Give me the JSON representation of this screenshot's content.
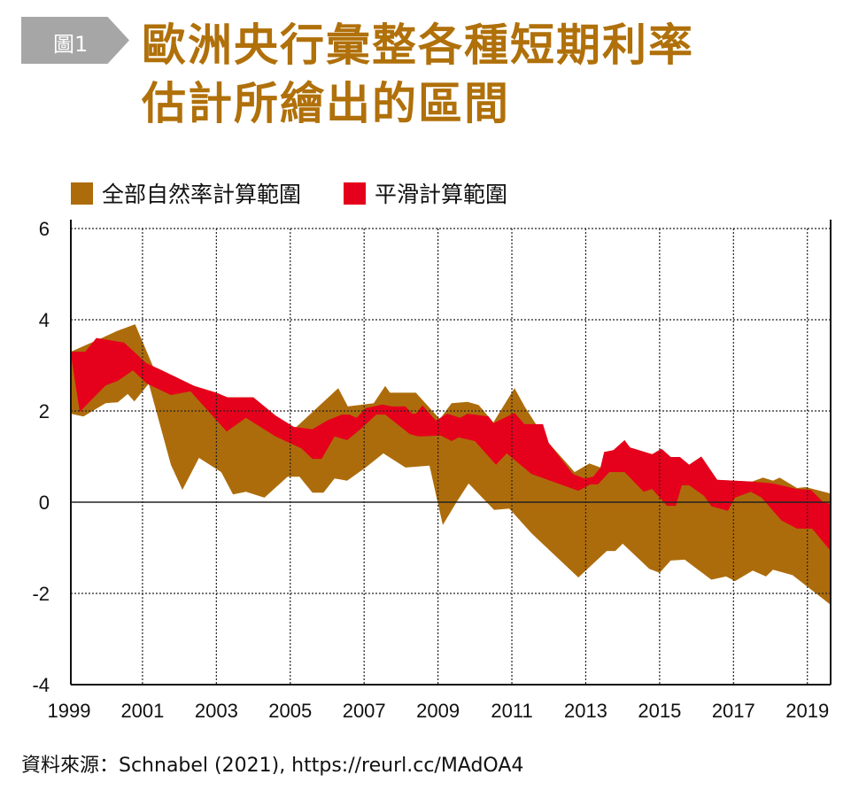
{
  "header": {
    "badge": "圖1",
    "title_line1": "歐洲央行彙整各種短期利率",
    "title_line2": "估計所繪出的區間"
  },
  "source": "資料來源：Schnabel (2021), https://reurl.cc/MAdOA4",
  "colors": {
    "full_range": "#ad6c0b",
    "smoothed_range": "#e5001c",
    "title": "#b0700a",
    "badge": "#a6a6a6"
  },
  "chart_data": {
    "type": "area",
    "title": "歐洲央行彙整各種短期利率估計所繪出的區間",
    "xlabel": "",
    "ylabel": "",
    "xlim": [
      1999.06,
      2019.63
    ],
    "ylim": [
      -4,
      6
    ],
    "x_ticks": [
      "1999",
      "2001",
      "2003",
      "2005",
      "2007",
      "2009",
      "2011",
      "2013",
      "2015",
      "2017",
      "2019"
    ],
    "x_tick_values": [
      1999,
      2001,
      2003,
      2005,
      2007,
      2009,
      2011,
      2013,
      2015,
      2017,
      2019
    ],
    "y_ticks": [
      "6",
      "4",
      "2",
      "0",
      "-2",
      "-4"
    ],
    "y_tick_values": [
      6,
      4,
      2,
      0,
      -2,
      -4
    ],
    "grid": true,
    "legend_position": "top-left",
    "series": [
      {
        "name": "全部自然率計算範圍",
        "color": "#ad6c0b",
        "upper": [
          [
            1999.06,
            3.3
          ],
          [
            1999.9,
            3.6
          ],
          [
            2000.3,
            3.75
          ],
          [
            2000.8,
            3.9
          ],
          [
            2001.3,
            2.95
          ],
          [
            2001.5,
            2.9
          ],
          [
            2002.4,
            2.55
          ],
          [
            2003,
            2.4
          ],
          [
            2003.3,
            2.3
          ],
          [
            2004,
            2.3
          ],
          [
            2004.6,
            1.9
          ],
          [
            2005.1,
            1.6
          ],
          [
            2005.7,
            2.05
          ],
          [
            2006.3,
            2.5
          ],
          [
            2006.56,
            2.1
          ],
          [
            2007.26,
            2.17
          ],
          [
            2007.57,
            2.55
          ],
          [
            2007.7,
            2.4
          ],
          [
            2008.4,
            2.4
          ],
          [
            2009.05,
            1.82
          ],
          [
            2009.37,
            2.17
          ],
          [
            2009.8,
            2.2
          ],
          [
            2010.1,
            2.13
          ],
          [
            2010.5,
            1.75
          ],
          [
            2011.07,
            2.5
          ],
          [
            2011.36,
            2.08
          ],
          [
            2011.93,
            1.36
          ],
          [
            2012.7,
            0.66
          ],
          [
            2013.1,
            0.85
          ],
          [
            2013.4,
            0.76
          ],
          [
            2013.5,
            1.1
          ],
          [
            2013.75,
            1.14
          ],
          [
            2014.05,
            1.36
          ],
          [
            2014.2,
            1.2
          ],
          [
            2014.8,
            1.05
          ],
          [
            2015.05,
            1.17
          ],
          [
            2015.3,
            0.99
          ],
          [
            2015.55,
            0.99
          ],
          [
            2015.8,
            0.82
          ],
          [
            2016.13,
            1.0
          ],
          [
            2016.56,
            0.49
          ],
          [
            2017.5,
            0.45
          ],
          [
            2017.8,
            0.54
          ],
          [
            2018.07,
            0.47
          ],
          [
            2018.25,
            0.54
          ],
          [
            2018.72,
            0.31
          ],
          [
            2018.96,
            0.33
          ],
          [
            2019.63,
            0.19
          ]
        ],
        "lower": [
          [
            1999.06,
            1.94
          ],
          [
            1999.4,
            1.88
          ],
          [
            2000.0,
            2.17
          ],
          [
            2000.33,
            2.19
          ],
          [
            2000.6,
            2.37
          ],
          [
            2000.78,
            2.21
          ],
          [
            2001.17,
            2.6
          ],
          [
            2001.77,
            0.82
          ],
          [
            2002.08,
            0.27
          ],
          [
            2002.53,
            0.97
          ],
          [
            2003.13,
            0.66
          ],
          [
            2003.45,
            0.17
          ],
          [
            2003.8,
            0.23
          ],
          [
            2004.3,
            0.1
          ],
          [
            2004.93,
            0.56
          ],
          [
            2005.25,
            0.56
          ],
          [
            2005.6,
            0.21
          ],
          [
            2005.9,
            0.21
          ],
          [
            2006.2,
            0.52
          ],
          [
            2006.54,
            0.47
          ],
          [
            2007.04,
            0.76
          ],
          [
            2007.52,
            1.07
          ],
          [
            2008.12,
            0.76
          ],
          [
            2008.77,
            0.8
          ],
          [
            2009.13,
            -0.5
          ],
          [
            2009.5,
            0.0
          ],
          [
            2009.83,
            0.41
          ],
          [
            2010.52,
            -0.17
          ],
          [
            2010.93,
            -0.14
          ],
          [
            2011.53,
            -0.68
          ],
          [
            2012.8,
            -1.65
          ],
          [
            2013.57,
            -1.07
          ],
          [
            2013.8,
            -1.07
          ],
          [
            2014.0,
            -0.91
          ],
          [
            2014.72,
            -1.46
          ],
          [
            2015.0,
            -1.55
          ],
          [
            2015.3,
            -1.28
          ],
          [
            2015.68,
            -1.26
          ],
          [
            2016.4,
            -1.7
          ],
          [
            2016.8,
            -1.63
          ],
          [
            2017.04,
            -1.73
          ],
          [
            2017.52,
            -1.5
          ],
          [
            2017.88,
            -1.63
          ],
          [
            2018.07,
            -1.48
          ],
          [
            2018.6,
            -1.6
          ],
          [
            2019.63,
            -2.25
          ]
        ]
      },
      {
        "name": "平滑計算範圍",
        "color": "#e5001c",
        "upper": [
          [
            1999.06,
            3.3
          ],
          [
            1999.45,
            3.3
          ],
          [
            1999.75,
            3.6
          ],
          [
            2000.5,
            3.5
          ],
          [
            2001.1,
            3.05
          ],
          [
            2001.5,
            2.9
          ],
          [
            2002.4,
            2.55
          ],
          [
            2003,
            2.4
          ],
          [
            2003.3,
            2.3
          ],
          [
            2004,
            2.3
          ],
          [
            2004.6,
            1.9
          ],
          [
            2005.1,
            1.65
          ],
          [
            2005.6,
            1.6
          ],
          [
            2006.0,
            1.79
          ],
          [
            2006.4,
            1.92
          ],
          [
            2006.6,
            1.92
          ],
          [
            2006.8,
            1.85
          ],
          [
            2007.04,
            2.06
          ],
          [
            2007.5,
            2.14
          ],
          [
            2007.74,
            2.1
          ],
          [
            2008.12,
            2.1
          ],
          [
            2008.3,
            1.94
          ],
          [
            2008.4,
            1.94
          ],
          [
            2008.58,
            2.12
          ],
          [
            2008.94,
            1.79
          ],
          [
            2009.25,
            1.94
          ],
          [
            2009.6,
            1.85
          ],
          [
            2009.8,
            1.94
          ],
          [
            2010.37,
            1.88
          ],
          [
            2010.5,
            1.73
          ],
          [
            2011.07,
            1.96
          ],
          [
            2011.34,
            1.71
          ],
          [
            2011.84,
            1.71
          ],
          [
            2012.0,
            1.3
          ],
          [
            2012.65,
            0.62
          ],
          [
            2012.97,
            0.52
          ],
          [
            2013.2,
            0.56
          ],
          [
            2013.4,
            0.76
          ],
          [
            2013.5,
            1.1
          ],
          [
            2013.75,
            1.14
          ],
          [
            2014.05,
            1.36
          ],
          [
            2014.2,
            1.2
          ],
          [
            2014.8,
            1.05
          ],
          [
            2015.05,
            1.17
          ],
          [
            2015.3,
            0.99
          ],
          [
            2015.55,
            0.99
          ],
          [
            2015.8,
            0.82
          ],
          [
            2016.13,
            1.0
          ],
          [
            2016.56,
            0.49
          ],
          [
            2017.5,
            0.45
          ],
          [
            2018.07,
            0.41
          ],
          [
            2018.72,
            0.29
          ],
          [
            2019.1,
            0.27
          ],
          [
            2019.43,
            0.0
          ],
          [
            2019.63,
            -0.04
          ]
        ],
        "lower": [
          [
            1999.06,
            3.25
          ],
          [
            1999.3,
            1.98
          ],
          [
            2000.0,
            2.56
          ],
          [
            2000.33,
            2.66
          ],
          [
            2000.74,
            2.89
          ],
          [
            2001.12,
            2.6
          ],
          [
            2001.77,
            2.35
          ],
          [
            2002.3,
            2.43
          ],
          [
            2003.28,
            1.55
          ],
          [
            2003.8,
            1.85
          ],
          [
            2004.6,
            1.44
          ],
          [
            2005.3,
            1.18
          ],
          [
            2005.6,
            0.95
          ],
          [
            2005.85,
            0.95
          ],
          [
            2006.2,
            1.44
          ],
          [
            2006.54,
            1.36
          ],
          [
            2006.9,
            1.6
          ],
          [
            2007.33,
            1.92
          ],
          [
            2007.57,
            1.92
          ],
          [
            2008.24,
            1.49
          ],
          [
            2008.48,
            1.44
          ],
          [
            2009.08,
            1.46
          ],
          [
            2009.37,
            1.34
          ],
          [
            2009.56,
            1.42
          ],
          [
            2010.0,
            1.34
          ],
          [
            2010.57,
            0.82
          ],
          [
            2010.86,
            1.07
          ],
          [
            2011.53,
            0.62
          ],
          [
            2012.8,
            0.25
          ],
          [
            2013.13,
            0.39
          ],
          [
            2013.33,
            0.39
          ],
          [
            2013.64,
            0.66
          ],
          [
            2014.05,
            0.66
          ],
          [
            2014.57,
            0.23
          ],
          [
            2014.8,
            0.29
          ],
          [
            2015.2,
            -0.08
          ],
          [
            2015.44,
            -0.08
          ],
          [
            2015.6,
            0.37
          ],
          [
            2015.8,
            0.37
          ],
          [
            2016.2,
            0.14
          ],
          [
            2016.4,
            -0.09
          ],
          [
            2016.85,
            -0.19
          ],
          [
            2017.04,
            0.1
          ],
          [
            2017.47,
            0.23
          ],
          [
            2017.76,
            0.1
          ],
          [
            2018.3,
            -0.4
          ],
          [
            2018.72,
            -0.58
          ],
          [
            2019.13,
            -0.58
          ],
          [
            2019.63,
            -1.07
          ]
        ]
      }
    ]
  }
}
